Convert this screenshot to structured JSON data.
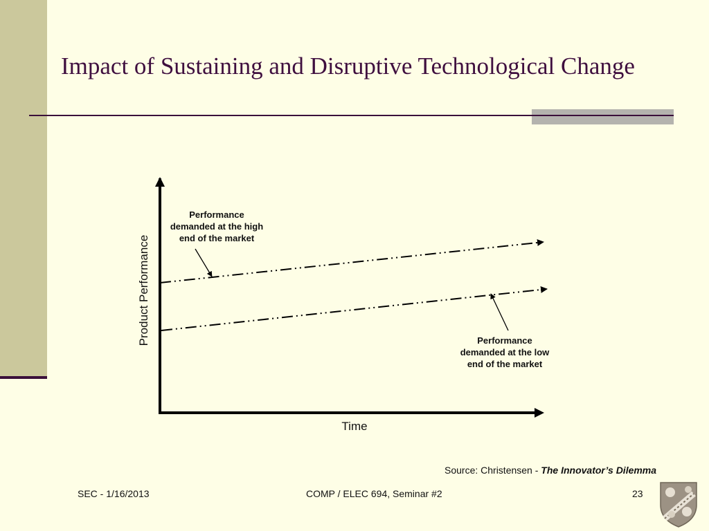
{
  "slide": {
    "title": "Impact of Sustaining and Disruptive Technological Change"
  },
  "diagram": {
    "y_axis_label": "Product Performance",
    "x_axis_label": "Time",
    "high_end_label": [
      "Performance",
      "demanded at the high",
      "end of the market"
    ],
    "low_end_label": [
      "Performance",
      "demanded at the low",
      "end of the market"
    ]
  },
  "source": {
    "prefix": "Source: Christensen - ",
    "book": "The Innovator’s Dilemma"
  },
  "footer": {
    "left": "SEC - 1/16/2013",
    "center": "COMP / ELEC 694, Seminar #2",
    "page": "23"
  },
  "colors": {
    "background": "#fefee6",
    "sidebar": "#cbc89c",
    "title": "#3f0f3f",
    "accent_bar": "#b4b3ae"
  },
  "icons": {
    "seal": "university-shield-icon"
  }
}
